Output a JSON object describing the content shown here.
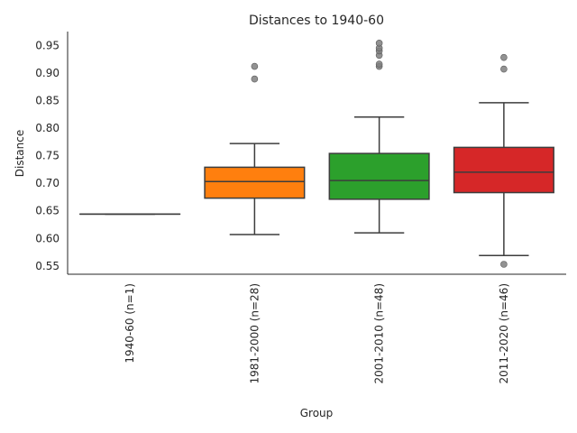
{
  "chart_data": {
    "type": "box",
    "title": "Distances to 1940-60",
    "xlabel": "Group",
    "ylabel": "Distance",
    "ylim": [
      0.535,
      0.975
    ],
    "yticks": [
      0.55,
      0.6,
      0.65,
      0.7,
      0.75,
      0.8,
      0.85,
      0.9,
      0.95
    ],
    "ytick_labels": [
      "0.55",
      "0.60",
      "0.65",
      "0.70",
      "0.75",
      "0.80",
      "0.85",
      "0.90",
      "0.95"
    ],
    "grid": false,
    "categories": [
      "1940-60 (n=1)",
      "1981-2000 (n=28)",
      "2001-2010 (n=48)",
      "2011-2020 (n=46)"
    ],
    "boxes": [
      {
        "category": "1940-60 (n=1)",
        "color": "#1f77b4",
        "whisker_low": 0.644,
        "q1": 0.644,
        "median": 0.644,
        "q3": 0.644,
        "whisker_high": 0.644,
        "outliers": []
      },
      {
        "category": "1981-2000 (n=28)",
        "color": "#ff7f0e",
        "whisker_low": 0.607,
        "q1": 0.673,
        "median": 0.703,
        "q3": 0.729,
        "whisker_high": 0.772,
        "outliers": [
          0.889,
          0.912
        ]
      },
      {
        "category": "2001-2010 (n=48)",
        "color": "#2ca02c",
        "whisker_low": 0.61,
        "q1": 0.671,
        "median": 0.705,
        "q3": 0.754,
        "whisker_high": 0.82,
        "outliers": [
          0.912,
          0.916,
          0.932,
          0.94,
          0.945,
          0.954
        ]
      },
      {
        "category": "2011-2020 (n=46)",
        "color": "#d62728",
        "whisker_low": 0.569,
        "q1": 0.683,
        "median": 0.72,
        "q3": 0.765,
        "whisker_high": 0.846,
        "outliers": [
          0.553,
          0.907,
          0.928
        ]
      }
    ]
  }
}
